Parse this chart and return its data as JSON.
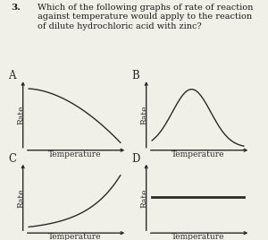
{
  "title_bold": "3.",
  "title_text": "Which of the following graphs of rate of reaction\nagainst temperature would apply to the reaction\nof dilute hydrochloric acid with zinc?",
  "panels": [
    "A",
    "B",
    "C",
    "D"
  ],
  "xlabel": "Temperature",
  "ylabel": "Rate",
  "background_color": "#f0efe8",
  "line_color": "#2a2a2a",
  "text_color": "#1a1a1a",
  "title_fontsize": 7.0,
  "label_fontsize": 6.5,
  "panel_label_fontsize": 8.5,
  "title_bold_fontsize": 7.5
}
